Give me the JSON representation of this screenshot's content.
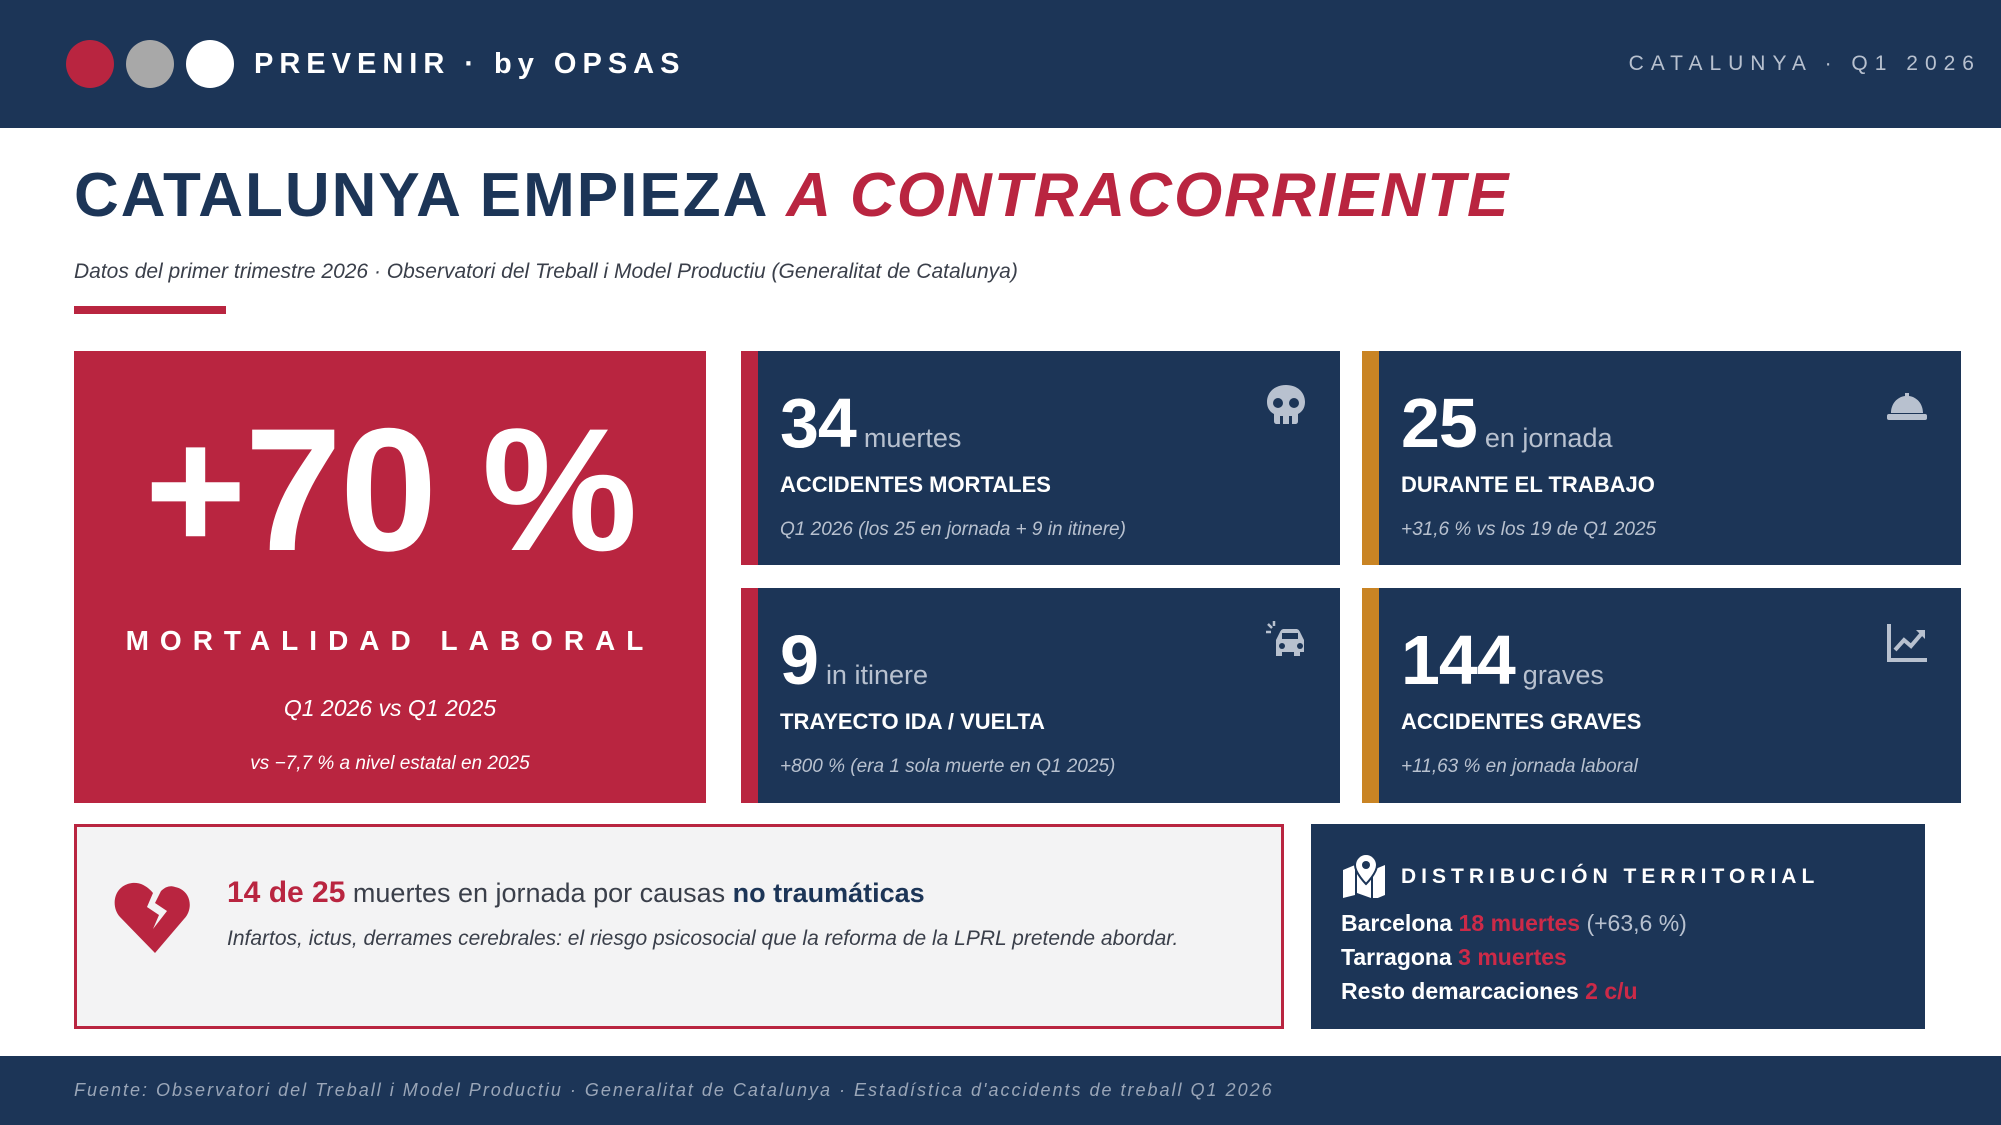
{
  "header": {
    "brand": "PREVENIR  ·  by OPSAS",
    "context": "CATALUNYA  ·  Q1 2026",
    "dot_colors": [
      "#b92540",
      "#a8a8a8",
      "#ffffff"
    ]
  },
  "title": {
    "main": "CATALUNYA EMPIEZA ",
    "accent": "A CONTRACORRIENTE"
  },
  "subtitle": "Datos del primer trimestre 2026 · Observatori del Treball i Model Productiu (Generalitat de Catalunya)",
  "hero": {
    "value": "+70 %",
    "label": "MORTALIDAD LABORAL",
    "compare": "Q1 2026 vs Q1 2025",
    "note": "vs −7,7 % a nivel estatal en 2025"
  },
  "cards": [
    {
      "number": "34",
      "unit": "muertes",
      "label": "ACCIDENTES MORTALES",
      "note": "Q1 2026 (los 25 en jornada + 9 in itinere)",
      "icon": "skull-icon",
      "accent": "#b92540"
    },
    {
      "number": "25",
      "unit": "en jornada",
      "label": "DURANTE EL TRABAJO",
      "note": "+31,6 % vs los 19 de Q1 2025",
      "icon": "hard-hat-icon",
      "accent": "#c98424"
    },
    {
      "number": "9",
      "unit": "in itinere",
      "label": "TRAYECTO IDA / VUELTA",
      "note": "+800 % (era 1 sola muerte en Q1 2025)",
      "icon": "car-crash-icon",
      "accent": "#b92540"
    },
    {
      "number": "144",
      "unit": "graves",
      "label": "ACCIDENTES GRAVES",
      "note": "+11,63 % en jornada laboral",
      "icon": "trend-up-chart-icon",
      "accent": "#c98424"
    }
  ],
  "nontraumatic": {
    "count": "14 de 25",
    "text": " muertes en jornada por causas ",
    "emphasis": "no traumáticas",
    "detail": "Infartos, ictus, derrames cerebrales: el riesgo psicosocial que la reforma de la LPRL pretende abordar.",
    "icon": "broken-heart-icon"
  },
  "territorial": {
    "title": "DISTRIBUCIÓN TERRITORIAL",
    "icon": "map-pin-icon",
    "rows": [
      {
        "place": "Barcelona ",
        "value": "18 muertes",
        "extra": " (+63,6 %)"
      },
      {
        "place": "Tarragona ",
        "value": "3 muertes",
        "extra": ""
      },
      {
        "place": "Resto demarcaciones ",
        "value": "2 c/u",
        "extra": ""
      }
    ]
  },
  "footer": "Fuente: Observatori del Treball i Model Productiu · Generalitat de Catalunya · Estadística d'accidents de treball Q1 2026"
}
